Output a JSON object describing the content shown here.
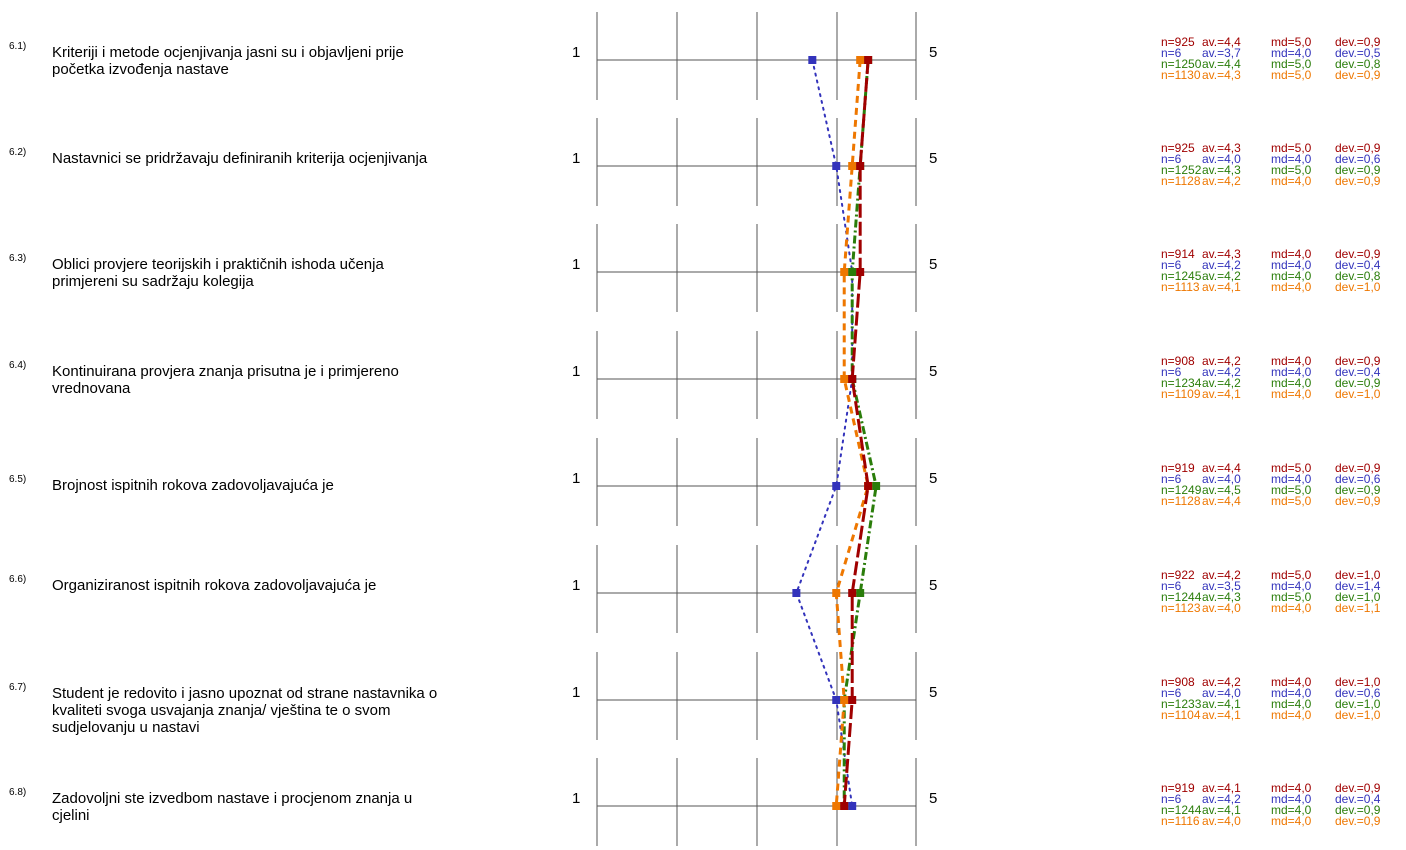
{
  "colors": [
    "#a00000",
    "#3333bb",
    "#2a7d0a",
    "#ee7700"
  ],
  "scale": {
    "min_label": "1",
    "max_label": "5"
  },
  "chart_data": {
    "type": "line",
    "orientation": "horizontal-profile",
    "xlim": [
      1,
      5
    ],
    "categories": [
      "6.1)",
      "6.2)",
      "6.3)",
      "6.4)",
      "6.5)",
      "6.6)",
      "6.7)",
      "6.8)"
    ],
    "series": [
      {
        "values": [
          4.4,
          4.3,
          4.3,
          4.2,
          4.4,
          4.2,
          4.2,
          4.1
        ],
        "style": "dashed-long"
      },
      {
        "values": [
          3.7,
          4.0,
          4.2,
          4.2,
          4.0,
          3.5,
          4.0,
          4.2
        ],
        "style": "dotted"
      },
      {
        "values": [
          4.4,
          4.3,
          4.2,
          4.2,
          4.5,
          4.3,
          4.1,
          4.1
        ],
        "style": "dash-dot"
      },
      {
        "values": [
          4.3,
          4.2,
          4.1,
          4.1,
          4.4,
          4.0,
          4.1,
          4.0
        ],
        "style": "dashed"
      }
    ]
  },
  "questions": [
    {
      "num": "6.1)",
      "text": "Kriteriji i metode ocjenjivanja jasni su i objavljeni prije početka izvođenja nastave",
      "stats": [
        {
          "n": "n=925",
          "av": "av.=4,4",
          "md": "md=5,0",
          "dev": "dev.=0,9"
        },
        {
          "n": "n=6",
          "av": "av.=3,7",
          "md": "md=4,0",
          "dev": "dev.=0,5"
        },
        {
          "n": "n=1250",
          "av": "av.=4,4",
          "md": "md=5,0",
          "dev": "dev.=0,8"
        },
        {
          "n": "n=1130",
          "av": "av.=4,3",
          "md": "md=5,0",
          "dev": "dev.=0,9"
        }
      ]
    },
    {
      "num": "6.2)",
      "text": "Nastavnici se pridržavaju definiranih kriterija ocjenjivanja",
      "stats": [
        {
          "n": "n=925",
          "av": "av.=4,3",
          "md": "md=5,0",
          "dev": "dev.=0,9"
        },
        {
          "n": "n=6",
          "av": "av.=4,0",
          "md": "md=4,0",
          "dev": "dev.=0,6"
        },
        {
          "n": "n=1252",
          "av": "av.=4,3",
          "md": "md=5,0",
          "dev": "dev.=0,9"
        },
        {
          "n": "n=1128",
          "av": "av.=4,2",
          "md": "md=4,0",
          "dev": "dev.=0,9"
        }
      ]
    },
    {
      "num": "6.3)",
      "text": "Oblici provjere teorijskih i praktičnih ishoda učenja primjereni su sadržaju kolegija",
      "stats": [
        {
          "n": "n=914",
          "av": "av.=4,3",
          "md": "md=4,0",
          "dev": "dev.=0,9"
        },
        {
          "n": "n=6",
          "av": "av.=4,2",
          "md": "md=4,0",
          "dev": "dev.=0,4"
        },
        {
          "n": "n=1245",
          "av": "av.=4,2",
          "md": "md=4,0",
          "dev": "dev.=0,8"
        },
        {
          "n": "n=1113",
          "av": "av.=4,1",
          "md": "md=4,0",
          "dev": "dev.=1,0"
        }
      ]
    },
    {
      "num": "6.4)",
      "text": "Kontinuirana provjera znanja prisutna je i primjereno vrednovana",
      "stats": [
        {
          "n": "n=908",
          "av": "av.=4,2",
          "md": "md=4,0",
          "dev": "dev.=0,9"
        },
        {
          "n": "n=6",
          "av": "av.=4,2",
          "md": "md=4,0",
          "dev": "dev.=0,4"
        },
        {
          "n": "n=1234",
          "av": "av.=4,2",
          "md": "md=4,0",
          "dev": "dev.=0,9"
        },
        {
          "n": "n=1109",
          "av": "av.=4,1",
          "md": "md=4,0",
          "dev": "dev.=1,0"
        }
      ]
    },
    {
      "num": "6.5)",
      "text": "Brojnost ispitnih rokova zadovoljavajuća je",
      "stats": [
        {
          "n": "n=919",
          "av": "av.=4,4",
          "md": "md=5,0",
          "dev": "dev.=0,9"
        },
        {
          "n": "n=6",
          "av": "av.=4,0",
          "md": "md=4,0",
          "dev": "dev.=0,6"
        },
        {
          "n": "n=1249",
          "av": "av.=4,5",
          "md": "md=5,0",
          "dev": "dev.=0,9"
        },
        {
          "n": "n=1128",
          "av": "av.=4,4",
          "md": "md=5,0",
          "dev": "dev.=0,9"
        }
      ]
    },
    {
      "num": "6.6)",
      "text": "Organiziranost ispitnih rokova zadovoljavajuća je",
      "stats": [
        {
          "n": "n=922",
          "av": "av.=4,2",
          "md": "md=5,0",
          "dev": "dev.=1,0"
        },
        {
          "n": "n=6",
          "av": "av.=3,5",
          "md": "md=4,0",
          "dev": "dev.=1,4"
        },
        {
          "n": "n=1244",
          "av": "av.=4,3",
          "md": "md=5,0",
          "dev": "dev.=1,0"
        },
        {
          "n": "n=1123",
          "av": "av.=4,0",
          "md": "md=4,0",
          "dev": "dev.=1,1"
        }
      ]
    },
    {
      "num": "6.7)",
      "text": "Student je redovito i jasno upoznat od strane nastavnika o kvaliteti svoga usvajanja znanja/ vještina te o svom sudjelovanju u nastavi",
      "stats": [
        {
          "n": "n=908",
          "av": "av.=4,2",
          "md": "md=4,0",
          "dev": "dev.=1,0"
        },
        {
          "n": "n=6",
          "av": "av.=4,0",
          "md": "md=4,0",
          "dev": "dev.=0,6"
        },
        {
          "n": "n=1233",
          "av": "av.=4,1",
          "md": "md=4,0",
          "dev": "dev.=1,0"
        },
        {
          "n": "n=1104",
          "av": "av.=4,1",
          "md": "md=4,0",
          "dev": "dev.=1,0"
        }
      ]
    },
    {
      "num": "6.8)",
      "text": "Zadovoljni ste  izvedbom nastave i procjenom znanja u cjelini",
      "stats": [
        {
          "n": "n=919",
          "av": "av.=4,1",
          "md": "md=4,0",
          "dev": "dev.=0,9"
        },
        {
          "n": "n=6",
          "av": "av.=4,2",
          "md": "md=4,0",
          "dev": "dev.=0,4"
        },
        {
          "n": "n=1244",
          "av": "av.=4,1",
          "md": "md=4,0",
          "dev": "dev.=0,9"
        },
        {
          "n": "n=1116",
          "av": "av.=4,0",
          "md": "md=4,0",
          "dev": "dev.=0,9"
        }
      ]
    }
  ]
}
